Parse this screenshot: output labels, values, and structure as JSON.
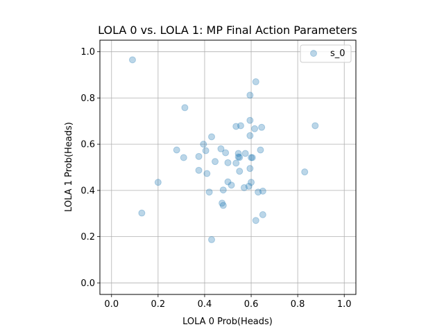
{
  "chart_data": {
    "type": "scatter",
    "title": "LOLA 0 vs. LOLA 1: MP Final Action Parameters",
    "xlabel": "LOLA 0 Prob(Heads)",
    "ylabel": "LOLA 1 Prob(Heads)",
    "xlim": [
      -0.05,
      1.05
    ],
    "ylim": [
      -0.05,
      1.05
    ],
    "xticks": [
      0.0,
      0.2,
      0.4,
      0.6,
      0.8,
      1.0
    ],
    "yticks": [
      0.0,
      0.2,
      0.4,
      0.6,
      0.8,
      1.0
    ],
    "xtick_labels": [
      "0.0",
      "0.2",
      "0.4",
      "0.6",
      "0.8",
      "1.0"
    ],
    "ytick_labels": [
      "0.0",
      "0.2",
      "0.4",
      "0.6",
      "0.8",
      "1.0"
    ],
    "grid": true,
    "legend_position": "top-right",
    "series": [
      {
        "name": "s_0",
        "color": "#1f77b4",
        "points": [
          [
            0.09,
            0.965
          ],
          [
            0.62,
            0.87
          ],
          [
            0.595,
            0.812
          ],
          [
            0.315,
            0.758
          ],
          [
            0.595,
            0.703
          ],
          [
            0.875,
            0.68
          ],
          [
            0.535,
            0.677
          ],
          [
            0.555,
            0.68
          ],
          [
            0.615,
            0.667
          ],
          [
            0.645,
            0.673
          ],
          [
            0.595,
            0.637
          ],
          [
            0.43,
            0.632
          ],
          [
            0.395,
            0.6
          ],
          [
            0.28,
            0.575
          ],
          [
            0.405,
            0.572
          ],
          [
            0.47,
            0.58
          ],
          [
            0.64,
            0.575
          ],
          [
            0.49,
            0.563
          ],
          [
            0.545,
            0.56
          ],
          [
            0.575,
            0.56
          ],
          [
            0.375,
            0.547
          ],
          [
            0.31,
            0.542
          ],
          [
            0.545,
            0.545
          ],
          [
            0.55,
            0.543
          ],
          [
            0.6,
            0.542
          ],
          [
            0.605,
            0.542
          ],
          [
            0.445,
            0.525
          ],
          [
            0.5,
            0.52
          ],
          [
            0.535,
            0.518
          ],
          [
            0.375,
            0.487
          ],
          [
            0.55,
            0.483
          ],
          [
            0.595,
            0.495
          ],
          [
            0.83,
            0.48
          ],
          [
            0.41,
            0.473
          ],
          [
            0.2,
            0.435
          ],
          [
            0.5,
            0.437
          ],
          [
            0.515,
            0.423
          ],
          [
            0.6,
            0.435
          ],
          [
            0.57,
            0.412
          ],
          [
            0.59,
            0.418
          ],
          [
            0.48,
            0.402
          ],
          [
            0.42,
            0.393
          ],
          [
            0.63,
            0.393
          ],
          [
            0.65,
            0.397
          ],
          [
            0.475,
            0.345
          ],
          [
            0.48,
            0.335
          ],
          [
            0.13,
            0.302
          ],
          [
            0.65,
            0.295
          ],
          [
            0.62,
            0.27
          ],
          [
            0.43,
            0.187
          ]
        ]
      }
    ]
  }
}
